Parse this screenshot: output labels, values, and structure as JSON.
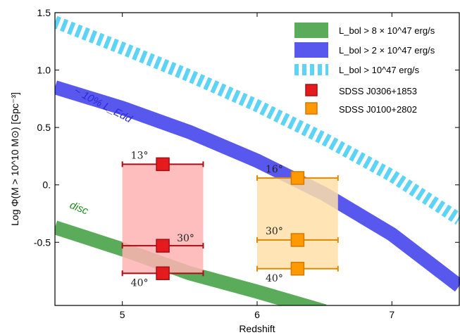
{
  "chart_data": {
    "type": "line",
    "xlabel": "Redshift",
    "ylabel": "Log Φ(M > 10^10 M⊙) [Gpc⁻³]",
    "xlim": [
      4.5,
      7.5
    ],
    "ylim": [
      -1.05,
      1.5
    ],
    "xticks": [
      5,
      6,
      7
    ],
    "xtick_labels": [
      "5",
      "6",
      "7"
    ],
    "yticks": [
      1.5,
      1.0,
      0.5,
      0.0,
      -0.5
    ],
    "ytick_labels": [
      "1.5",
      "1.0",
      "0.5",
      "0.",
      "-0.5"
    ],
    "grid": false,
    "legend_position": "top-right",
    "series": [
      {
        "name": "L_bol > 8 × 10^47 erg/s",
        "style": "band",
        "color": "#5aab5a",
        "x": [
          4.5,
          5.0,
          5.5,
          6.0,
          6.5
        ],
        "y": [
          -0.37,
          -0.56,
          -0.77,
          -0.93,
          -1.1
        ]
      },
      {
        "name": "L_bol > 2 × 10^47 erg/s",
        "style": "band",
        "color": "#5858ee",
        "x": [
          4.5,
          5.0,
          5.5,
          6.0,
          6.5,
          7.0,
          7.5
        ],
        "y": [
          0.85,
          0.67,
          0.46,
          0.21,
          -0.08,
          -0.43,
          -0.88
        ]
      },
      {
        "name": "L_bol > 10^47 erg/s",
        "style": "dashed-band",
        "color": "#5dd3f5",
        "x": [
          4.5,
          5.0,
          5.5,
          6.0,
          6.5,
          7.0,
          7.5
        ],
        "y": [
          1.42,
          1.19,
          0.95,
          0.69,
          0.4,
          0.08,
          -0.3
        ]
      }
    ],
    "objects": [
      {
        "name": "SDSS J0306+1853",
        "color": "#e41a1c",
        "box_color": "#ffb3b3",
        "z": 5.3,
        "xerr": [
          5.0,
          5.6
        ],
        "box_y": [
          -0.77,
          0.18
        ],
        "points": [
          {
            "label": "13°",
            "y": 0.18
          },
          {
            "label": "30°",
            "y": -0.53
          },
          {
            "label": "40°",
            "y": -0.77
          }
        ]
      },
      {
        "name": "SDSS J0100+2802",
        "color": "#ff9900",
        "box_color": "#ffe0a8",
        "z": 6.3,
        "xerr": [
          6.0,
          6.6
        ],
        "box_y": [
          -0.73,
          0.06
        ],
        "points": [
          {
            "label": "16°",
            "y": 0.06
          },
          {
            "label": "30°",
            "y": -0.48
          },
          {
            "label": "40°",
            "y": -0.73
          }
        ]
      }
    ],
    "annotations": [
      {
        "text": "~ 10% L_Edd",
        "color": "#2b2bd6"
      },
      {
        "text": "disc",
        "color": "#1f8a1f"
      }
    ],
    "legend": [
      {
        "label": "L_bol > 8 × 10^47 erg/s",
        "color": "#5aab5a"
      },
      {
        "label": "L_bol > 2 × 10^47 erg/s",
        "color": "#5858ee"
      },
      {
        "label": "L_bol > 10^47 erg/s",
        "color": "#5dd3f5"
      },
      {
        "label": "SDSS J0306+1853",
        "color": "#e41a1c"
      },
      {
        "label": "SDSS J0100+2802",
        "color": "#ff9900"
      }
    ]
  }
}
